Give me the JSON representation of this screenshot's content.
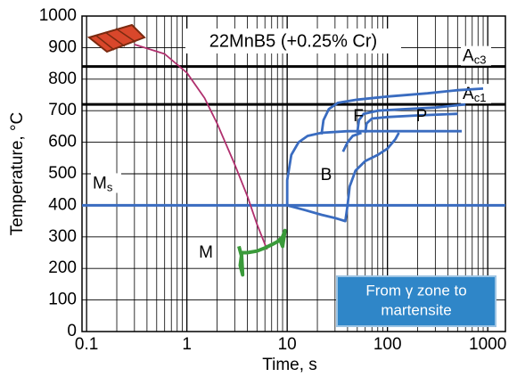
{
  "chart_data": {
    "type": "line",
    "title": "22MnB5 (+0.25% Cr)",
    "x_label": "Time, s",
    "y_label": "Temperature, °C",
    "x_log": true,
    "grid": true,
    "xlim": [
      0.09,
      1500
    ],
    "ylim": [
      0,
      1000
    ],
    "xticks": [
      0.1,
      1,
      10,
      100,
      1000
    ],
    "x_minor_ticks": [
      0.2,
      0.3,
      0.4,
      0.5,
      0.6,
      0.7,
      0.8,
      0.9,
      2,
      3,
      4,
      5,
      6,
      7,
      8,
      9,
      20,
      30,
      40,
      50,
      60,
      70,
      80,
      90,
      200,
      300,
      400,
      500,
      600,
      700,
      800,
      900
    ],
    "yticks": [
      0,
      100,
      200,
      300,
      400,
      500,
      600,
      700,
      800,
      900,
      1000
    ],
    "reference_lines": [
      {
        "main": "A",
        "sub": "c3",
        "value": 840,
        "color": "#000000"
      },
      {
        "main": "A",
        "sub": "c1",
        "value": 720,
        "color": "#000000"
      },
      {
        "main": "M",
        "sub": "s",
        "value": 400,
        "color": "#3a6cc0"
      }
    ],
    "series": [
      {
        "color": "#b0306e",
        "x": [
          0.3,
          0.6,
          1,
          1.5,
          2,
          3,
          4,
          5,
          6.3
        ],
        "y": [
          910,
          880,
          820,
          740,
          660,
          530,
          430,
          340,
          260
        ]
      },
      {
        "color": "#3a9a3a",
        "x": [
          3.3,
          3.5,
          3.4,
          3.6,
          3.5,
          4,
          5,
          6,
          7,
          8,
          9,
          9.5,
          9,
          8.5
        ],
        "y": [
          270,
          240,
          210,
          180,
          250,
          250,
          255,
          265,
          275,
          285,
          300,
          320,
          270,
          290
        ]
      },
      {
        "color": "#3a6cc0",
        "x": [
          10,
          10,
          11,
          13,
          16,
          22,
          40,
          100,
          250,
          550
        ],
        "y": [
          400,
          480,
          560,
          600,
          620,
          630,
          635,
          635,
          635,
          635
        ]
      },
      {
        "color": "#3a6cc0",
        "x": [
          22,
          23,
          26,
          32,
          50,
          100,
          250,
          500,
          900
        ],
        "y": [
          625,
          670,
          705,
          725,
          735,
          745,
          755,
          765,
          770
        ]
      },
      {
        "color": "#3a6cc0",
        "x": [
          50,
          52,
          58,
          80,
          150,
          300,
          600
        ],
        "y": [
          630,
          670,
          690,
          700,
          705,
          710,
          720
        ]
      },
      {
        "color": "#3a6cc0",
        "x": [
          60,
          62,
          70,
          100,
          200,
          500
        ],
        "y": [
          630,
          660,
          675,
          680,
          685,
          690
        ]
      },
      {
        "color": "#3a6cc0",
        "x": [
          10,
          15,
          22,
          30,
          38,
          40,
          42,
          48,
          60,
          80,
          100,
          120,
          130
        ],
        "y": [
          400,
          385,
          370,
          360,
          350,
          400,
          460,
          510,
          540,
          560,
          580,
          610,
          630
        ]
      },
      {
        "color": "#3a6cc0",
        "x": [
          36,
          40,
          45,
          55
        ],
        "y": [
          570,
          600,
          620,
          630
        ]
      }
    ],
    "annotations": [
      {
        "text": "F"
      },
      {
        "text": "P"
      },
      {
        "text": "B"
      },
      {
        "text": "M"
      }
    ],
    "button": {
      "lines": [
        "From γ zone to",
        "martensite"
      ]
    }
  }
}
